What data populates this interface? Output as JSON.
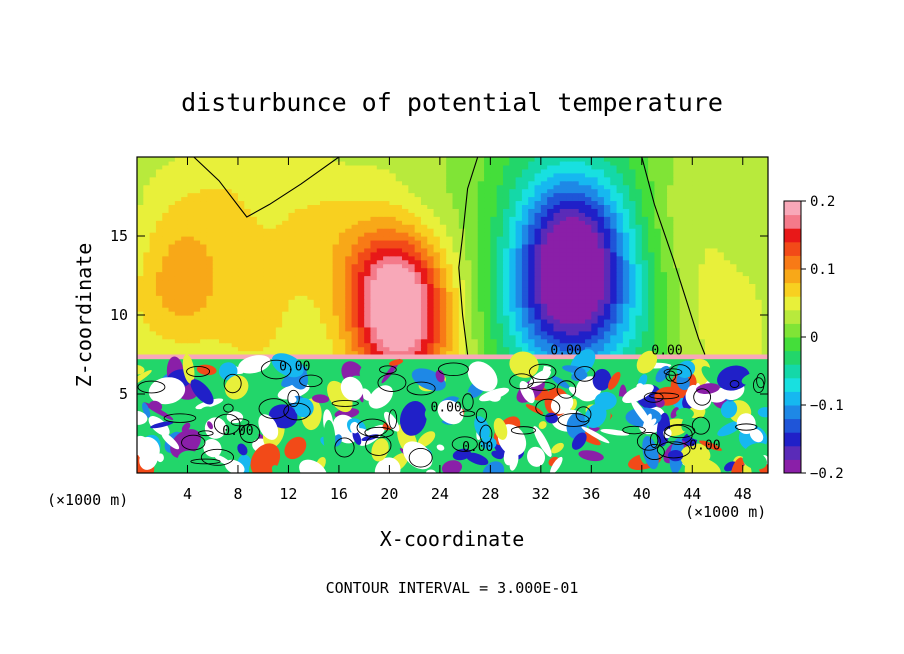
{
  "figure": {
    "title": "disturbunce of potential temperature",
    "x_unit": "(×1000 m)",
    "x_unit_right": "(×1000 m)",
    "contour_interval": "CONTOUR INTERVAL = 3.000E-01"
  },
  "chart_data": {
    "type": "heatmap",
    "title": "disturbunce of potential temperature",
    "xlabel": "X-coordinate",
    "ylabel": "Z-coordinate",
    "xlim": [
      0,
      50
    ],
    "ylim": [
      0,
      20
    ],
    "x_ticks": [
      "4",
      "8",
      "12",
      "16",
      "20",
      "24",
      "28",
      "32",
      "36",
      "40",
      "44",
      "48"
    ],
    "y_ticks": [
      "5",
      "10",
      "15"
    ],
    "colorbar": {
      "range": [
        -0.2,
        0.2
      ],
      "tick_labels": [
        "0.2",
        "0.1",
        "0",
        "−0.1",
        "−0.2"
      ],
      "colors": [
        "#8a1fa8",
        "#5a2bb8",
        "#2020c8",
        "#1f55d8",
        "#1e88e6",
        "#16b8f0",
        "#18e0e0",
        "#14d8a8",
        "#22d66a",
        "#44de3a",
        "#80e436",
        "#b8ea3c",
        "#e8f03a",
        "#f8d020",
        "#f8a818",
        "#f87a16",
        "#f24a18",
        "#e81818",
        "#f47a8a",
        "#f8a8b8"
      ]
    },
    "contour_labels": [
      "0.00",
      "0.00",
      "0.00",
      "0.00",
      "0.00",
      "0.00",
      "0.00"
    ],
    "blobs": [
      {
        "x": 20.5,
        "z": 11.0,
        "v": 0.16,
        "sx": 2.6,
        "sz": 3.2
      },
      {
        "x": 21.5,
        "z": 9.0,
        "v": 0.05,
        "sx": 4.5,
        "sz": 5.0
      },
      {
        "x": 34.5,
        "z": 12.0,
        "v": -0.19,
        "sx": 3.2,
        "sz": 4.2
      },
      {
        "x": 34.0,
        "z": 14.0,
        "v": -0.09,
        "sx": 6.0,
        "sz": 6.0
      },
      {
        "x": 9.0,
        "z": 15.0,
        "v": 0.04,
        "sx": 4.0,
        "sz": 5.0
      },
      {
        "x": 45.0,
        "z": 14.0,
        "v": 0.03,
        "sx": 3.0,
        "sz": 5.0
      },
      {
        "x": 3.0,
        "z": 11.0,
        "v": 0.05,
        "sx": 2.5,
        "sz": 3.0
      }
    ]
  }
}
